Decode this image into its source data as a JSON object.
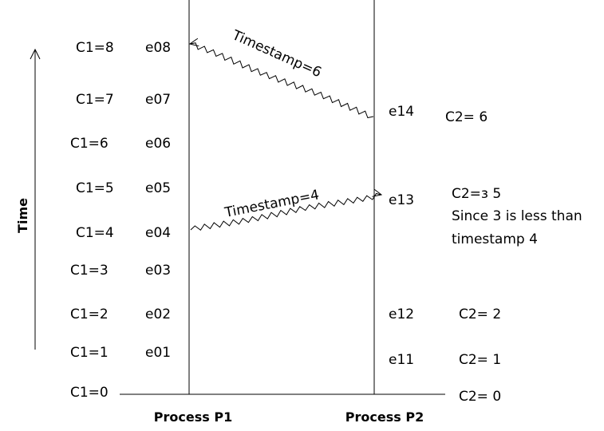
{
  "axis_label": "Time",
  "processes": {
    "p1": "Process P1",
    "p2": "Process P2"
  },
  "p1_events": [
    {
      "clock": "C1=8",
      "event": "e08"
    },
    {
      "clock": "C1=7",
      "event": "e07"
    },
    {
      "clock": "C1=6",
      "event": "e06"
    },
    {
      "clock": "C1=5",
      "event": "e05"
    },
    {
      "clock": "C1=4",
      "event": "e04"
    },
    {
      "clock": "C1=3",
      "event": "e03"
    },
    {
      "clock": "C1=2",
      "event": "e02"
    },
    {
      "clock": "C1=1",
      "event": "e01"
    },
    {
      "clock": "C1=0",
      "event": ""
    }
  ],
  "p2_events": [
    {
      "event": "e14",
      "clock": "C2= 6"
    },
    {
      "event": "e13",
      "clock": "C2=з 5"
    },
    {
      "event": "e12",
      "clock": "C2= 2"
    },
    {
      "event": "e11",
      "clock": "C2= 1"
    },
    {
      "event": "",
      "clock": "C2= 0"
    }
  ],
  "notes": {
    "line1": "Since 3 is less than",
    "line2": "timestamp 4"
  },
  "messages": [
    {
      "label": "Timestamp=6",
      "from": "e14",
      "to": "e08"
    },
    {
      "label": "Timestamp=4",
      "from": "e04",
      "to": "e13"
    }
  ]
}
